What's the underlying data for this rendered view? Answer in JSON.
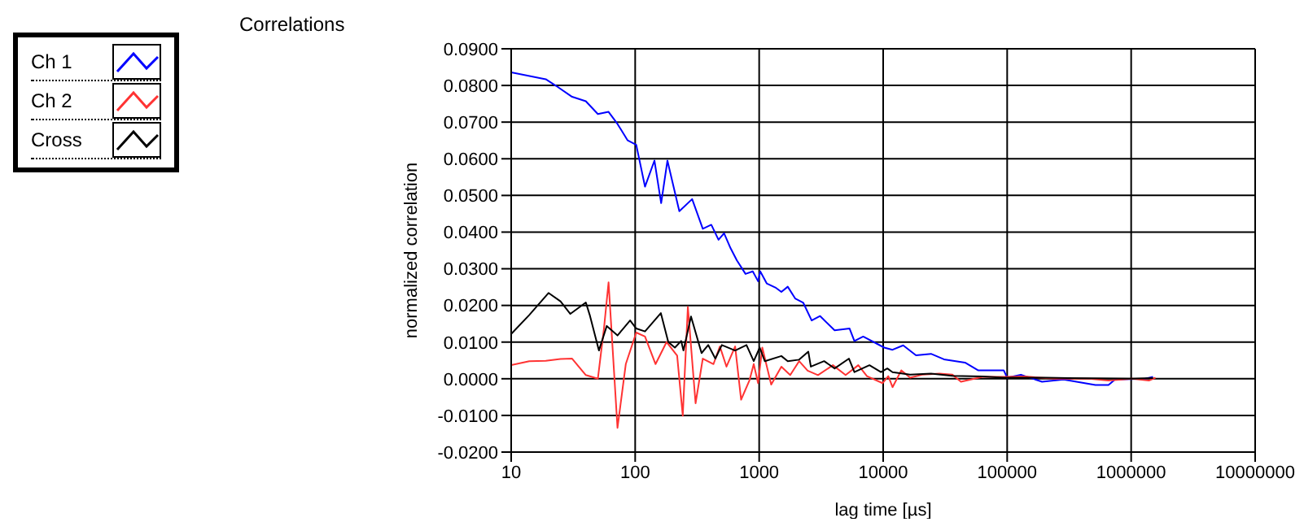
{
  "chart_data": {
    "type": "line",
    "title": "Correlations",
    "xlabel": "lag time [µs]",
    "ylabel": "normalized correlation",
    "log": "x",
    "grid": true,
    "legend": "top left",
    "marker": "none",
    "line_style": "solid",
    "xlim": [
      10,
      10000000
    ],
    "xticks": [
      10,
      100,
      1000,
      10000,
      100000,
      1000000,
      10000000
    ],
    "ylim": [
      -0.02,
      0.09
    ],
    "yticks": [
      {
        "value": -0.02,
        "label": "-0.0200"
      },
      {
        "value": -0.01,
        "label": "-0.0100"
      },
      {
        "value": 0,
        "label": "0.0000"
      },
      {
        "value": 0.01,
        "label": "0.0100"
      },
      {
        "value": 0.02,
        "label": "0.0200"
      },
      {
        "value": 0.03,
        "label": "0.0300"
      },
      {
        "value": 0.04,
        "label": "0.0400"
      },
      {
        "value": 0.05,
        "label": "0.0500"
      },
      {
        "value": 0.06,
        "label": "0.0600"
      },
      {
        "value": 0.07,
        "label": "0.0700"
      },
      {
        "value": 0.08,
        "label": "0.0800"
      },
      {
        "value": 0.09,
        "label": "0.0900"
      }
    ],
    "series": [
      {
        "name": "Ch 1",
        "color": "#0000ff",
        "x": [
          10,
          19,
          23,
          31,
          40,
          50,
          61,
          72,
          87,
          102,
          120,
          143,
          162,
          182,
          227,
          288,
          351,
          411,
          470,
          521,
          588,
          661,
          776,
          888,
          980,
          1020,
          1150,
          1350,
          1510,
          1700,
          1950,
          2270,
          2650,
          3100,
          4060,
          5360,
          5860,
          6900,
          10200,
          11900,
          14500,
          18400,
          24300,
          30900,
          45700,
          58200,
          93800,
          100000,
          129000,
          191000,
          285000,
          515000,
          656000,
          741000,
          1300000,
          1500000
        ],
        "values": [
          0.0836,
          0.0817,
          0.0799,
          0.0769,
          0.0757,
          0.0722,
          0.0728,
          0.0695,
          0.065,
          0.0638,
          0.0524,
          0.0595,
          0.0479,
          0.0595,
          0.0457,
          0.049,
          0.0409,
          0.042,
          0.0379,
          0.0397,
          0.0356,
          0.0323,
          0.0286,
          0.0293,
          0.0266,
          0.0293,
          0.026,
          0.0249,
          0.0237,
          0.0251,
          0.0219,
          0.0207,
          0.0159,
          0.0171,
          0.0132,
          0.0137,
          0.0103,
          0.0115,
          0.0085,
          0.0079,
          0.0091,
          0.0064,
          0.0068,
          0.0053,
          0.0044,
          0.0023,
          0.0023,
          0.0003,
          0.0011,
          -0.0008,
          -0.0002,
          -0.0017,
          -0.0017,
          -0.0002,
          0,
          0.0005
        ]
      },
      {
        "name": "Ch 2",
        "color": "#ff3333",
        "x": [
          10,
          14,
          19,
          25,
          31,
          40,
          50,
          56,
          61,
          72,
          84,
          102,
          120,
          146,
          179,
          218,
          242,
          266,
          307,
          351,
          428,
          482,
          545,
          640,
          715,
          836,
          904,
          980,
          1060,
          1250,
          1510,
          1780,
          2100,
          2460,
          2980,
          3930,
          4980,
          6300,
          7400,
          9900,
          11000,
          11900,
          14000,
          16500,
          20600,
          28500,
          36200,
          42400,
          63200,
          93800,
          139000,
          243000,
          459000,
          656000,
          1020000,
          1390000,
          1570000
        ],
        "values": [
          0.0037,
          0.0048,
          0.0049,
          0.0054,
          0.0055,
          0.001,
          0,
          0.0137,
          0.0263,
          -0.0134,
          0.004,
          0.0126,
          0.0115,
          0.004,
          0.01,
          0.0063,
          -0.0101,
          0.0196,
          -0.0067,
          0.0055,
          0.004,
          0.0088,
          0.0033,
          0.0088,
          -0.0057,
          -0.0004,
          0.004,
          -0.0012,
          0.0085,
          -0.0016,
          0.0033,
          0.001,
          0.0048,
          0.0022,
          0.001,
          0.0037,
          0.001,
          0.0037,
          0.0007,
          -0.0012,
          0.0007,
          -0.0023,
          0.0023,
          0.0003,
          0.0011,
          0.0014,
          0.0011,
          -0.0008,
          0.0005,
          0.0005,
          0.0006,
          0,
          0,
          -0.0005,
          0,
          -0.0005,
          0.0003
        ]
      },
      {
        "name": "Cross",
        "color": "#000000",
        "x": [
          10,
          14,
          20,
          25,
          30,
          40,
          43,
          51,
          59,
          72,
          91,
          102,
          120,
          161,
          185,
          209,
          235,
          245,
          282,
          343,
          388,
          443,
          500,
          640,
          790,
          904,
          1010,
          1110,
          1510,
          1700,
          2100,
          2490,
          2610,
          3340,
          4060,
          5300,
          5860,
          7750,
          9600,
          10800,
          11900,
          16500,
          24300,
          36200,
          63200,
          93800,
          206000,
          310000,
          1020000,
          1500000
        ],
        "values": [
          0.0122,
          0.0174,
          0.0234,
          0.0211,
          0.0177,
          0.0208,
          0.0174,
          0.0077,
          0.0144,
          0.0118,
          0.0159,
          0.0137,
          0.0129,
          0.0179,
          0.01,
          0.0085,
          0.0103,
          0.0077,
          0.017,
          0.007,
          0.0092,
          0.0055,
          0.0092,
          0.0077,
          0.0092,
          0.0048,
          0.0085,
          0.0048,
          0.0062,
          0.0048,
          0.0052,
          0.0074,
          0.0033,
          0.0048,
          0.0028,
          0.0055,
          0.0018,
          0.0037,
          0.0018,
          0.0028,
          0.0018,
          0.0011,
          0.0014,
          0.0008,
          0.0006,
          0.0003,
          0.0003,
          0.0002,
          0,
          0.0002
        ]
      }
    ]
  }
}
